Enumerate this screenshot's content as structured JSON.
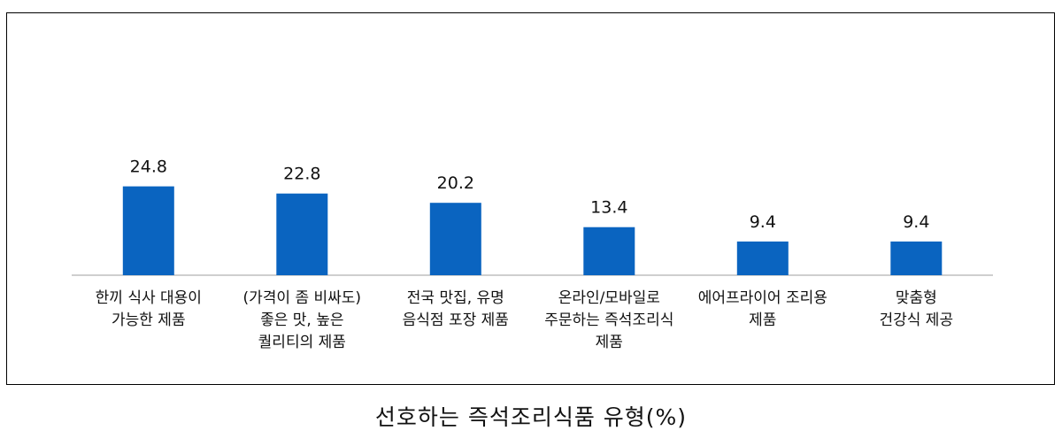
{
  "caption": "선호하는 즉석조리식품 유형(%)",
  "colors": {
    "bar": "#0A64C0",
    "axis": "#BFBFBF",
    "text": "#111111"
  },
  "chart_data": {
    "type": "bar",
    "title": "",
    "xlabel": "",
    "ylabel": "",
    "ylim": [
      0,
      40
    ],
    "grid": false,
    "legend": "none",
    "categories": [
      [
        "한끼 식사 대용이",
        "가능한 제품"
      ],
      [
        "(가격이 좀 비싸도)",
        "좋은 맛, 높은",
        "퀄리티의 제품"
      ],
      [
        "전국 맛집, 유명",
        "음식점 포장 제품"
      ],
      [
        "온라인/모바일로",
        "주문하는 즉석조리식",
        "제품"
      ],
      [
        "에어프라이어 조리용",
        "제품"
      ],
      [
        "맞춤형",
        "건강식 제공"
      ]
    ],
    "values": [
      24.8,
      22.8,
      20.2,
      13.4,
      9.4,
      9.4
    ],
    "data_labels": [
      "24.8",
      "22.8",
      "20.2",
      "13.4",
      "9.4",
      "9.4"
    ]
  }
}
